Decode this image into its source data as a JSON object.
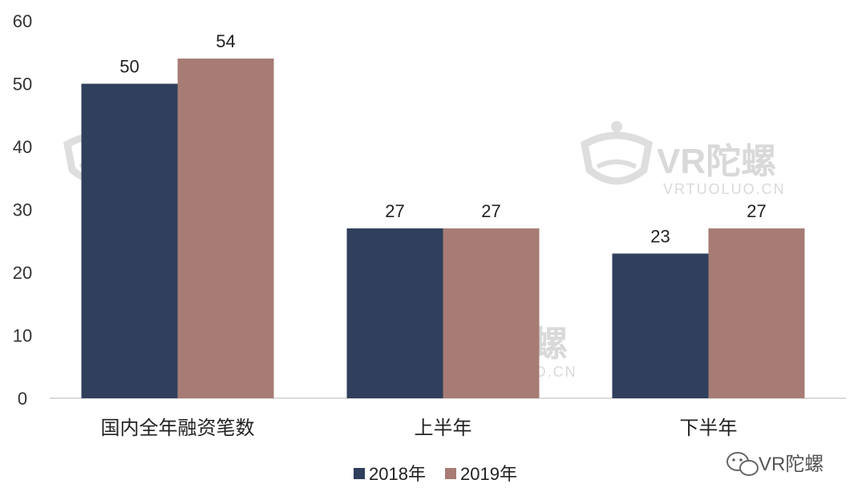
{
  "chart_data": {
    "type": "bar",
    "categories": [
      "国内全年融资笔数",
      "上半年",
      "下半年"
    ],
    "series": [
      {
        "name": "2018年",
        "values": [
          50,
          27,
          23
        ],
        "color": "#2f3f5c"
      },
      {
        "name": "2019年",
        "values": [
          54,
          27,
          27
        ],
        "color": "#a67c74"
      }
    ],
    "yticks": [
      0,
      10,
      20,
      30,
      40,
      50,
      60
    ],
    "ylim": [
      0,
      60
    ],
    "grid": false,
    "legend": "bottom-center"
  },
  "watermark": {
    "text": "VR陀螺",
    "sub": "VRTUOLUO.CN",
    "icon": "vr-headset-icon"
  },
  "brand": {
    "text": "VR陀螺",
    "icon": "wechat-icon"
  }
}
